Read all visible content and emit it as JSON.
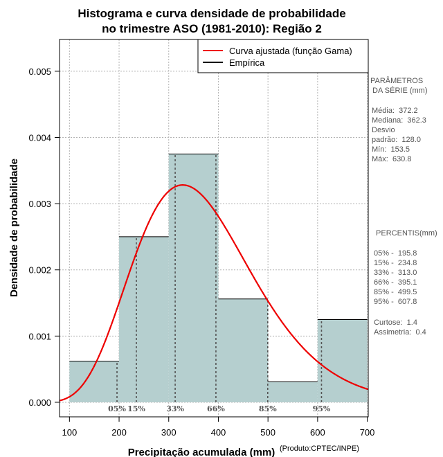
{
  "chart_data": {
    "type": "bar",
    "title_lines": [
      "Histograma e curva densidade de probabilidade",
      "no trimestre ASO (1981-2010): Região 2"
    ],
    "xlabel": "Precipitação acumulada (mm)",
    "ylabel": "Densidade de probabilidade",
    "credit": "(Produto:CPTEC/INPE)",
    "xlim": [
      80,
      702
    ],
    "ylim": [
      -0.00022,
      0.00548
    ],
    "x_ticks": [
      100,
      200,
      300,
      400,
      500,
      600,
      700
    ],
    "x_tick_labels": [
      "100",
      "200",
      "300",
      "400",
      "500",
      "600",
      "700"
    ],
    "y_ticks": [
      0.0,
      0.001,
      0.002,
      0.003,
      0.004,
      0.005
    ],
    "y_tick_labels": [
      "0.000",
      "0.001",
      "0.002",
      "0.003",
      "0.004",
      "0.005"
    ],
    "grid": true,
    "histogram": {
      "bins": [
        {
          "x0": 100,
          "x1": 200,
          "density": 0.00062
        },
        {
          "x0": 200,
          "x1": 300,
          "density": 0.0025
        },
        {
          "x0": 300,
          "x1": 400,
          "density": 0.00375
        },
        {
          "x0": 400,
          "x1": 500,
          "density": 0.00156
        },
        {
          "x0": 500,
          "x1": 600,
          "density": 0.00031
        },
        {
          "x0": 600,
          "x1": 700,
          "density": 0.00125
        }
      ],
      "fill": "#b5cfcf",
      "edge": "#000000"
    },
    "fitted_curve": {
      "name": "Curva ajustada (função Gama)",
      "color": "#ee0000",
      "distribution": "gamma",
      "mean": 372.2,
      "sd": 128.0
    },
    "legend": [
      {
        "label": "Curva ajustada (função Gama)",
        "color": "#ee0000"
      },
      {
        "label": "Empírica",
        "color": "#000000"
      }
    ],
    "legend_position": "top-right",
    "percentiles": [
      {
        "label": "05%",
        "value": 195.8
      },
      {
        "label": "15%",
        "value": 234.8
      },
      {
        "label": "33%",
        "value": 313.0
      },
      {
        "label": "66%",
        "value": 395.1
      },
      {
        "label": "85%",
        "value": 499.5
      },
      {
        "label": "95%",
        "value": 607.8
      }
    ]
  },
  "side_panel": {
    "params_title": [
      "PARÂMETROS",
      " DA SÉRIE (mm)"
    ],
    "params": [
      "Média:  372.2",
      "Mediana:  362.3",
      "Desvio",
      "padrão:  128.0",
      "Mín:  153.5",
      "Máx:  630.8"
    ],
    "percentis_title": " PERCENTIS(mm)",
    "percentis": [
      "05% -  195.8",
      "15% -  234.8",
      "33% -  313.0",
      "66% -  395.1",
      "85% -  499.5",
      "95% -  607.8"
    ],
    "shape": [
      "Curtose:  1.4",
      "Assimetria:  0.4"
    ]
  }
}
